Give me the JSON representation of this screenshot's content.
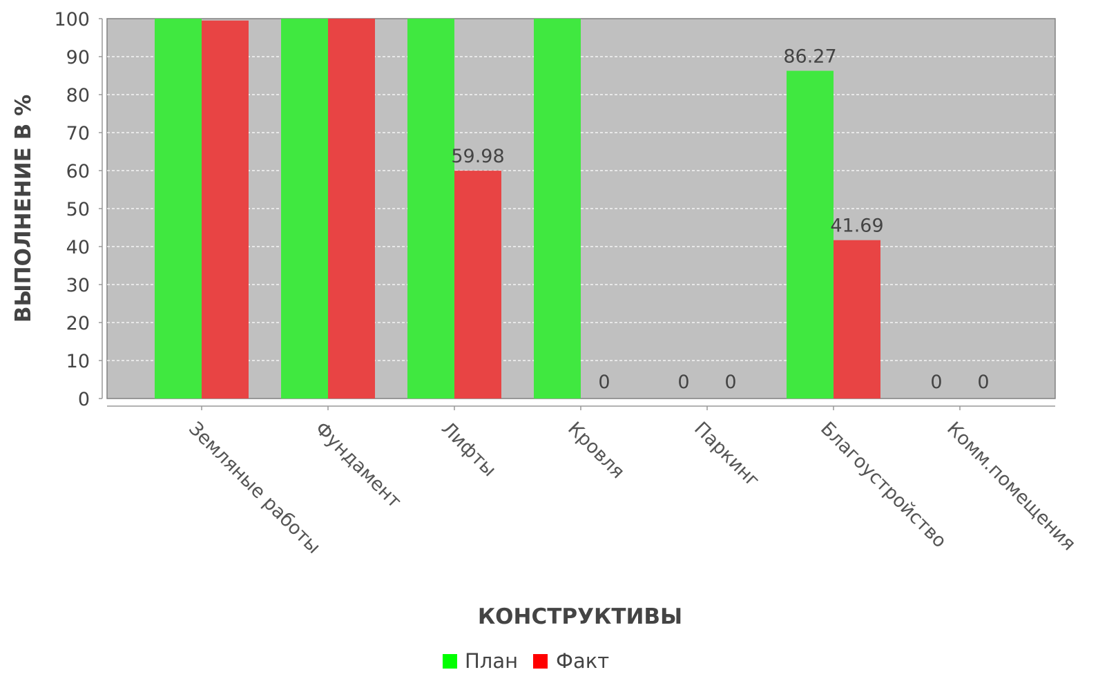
{
  "chart_data": {
    "type": "bar",
    "categories": [
      "Земляные работы",
      "Фундамент",
      "Лифты",
      "Кровля",
      "Паркинг",
      "Благоустройство",
      "Комм.помещения"
    ],
    "series": [
      {
        "name": "План",
        "values": [
          100,
          100,
          100,
          100,
          0,
          86.27,
          0
        ],
        "color": "#40E840"
      },
      {
        "name": "Факт",
        "values": [
          99.5,
          100,
          59.98,
          0,
          0,
          41.69,
          0
        ],
        "color": "#E84444"
      }
    ],
    "data_labels": [
      {
        "series": 1,
        "index": 2,
        "text": "59.98"
      },
      {
        "series": 1,
        "index": 3,
        "text": "0"
      },
      {
        "series": 0,
        "index": 4,
        "text": "0"
      },
      {
        "series": 1,
        "index": 4,
        "text": "0"
      },
      {
        "series": 0,
        "index": 5,
        "text": "86.27"
      },
      {
        "series": 1,
        "index": 5,
        "text": "41.69"
      },
      {
        "series": 0,
        "index": 6,
        "text": "0"
      },
      {
        "series": 1,
        "index": 6,
        "text": "0"
      }
    ],
    "xlabel": "КОНСТРУКТИВЫ",
    "ylabel": "ВЫПОЛНЕНИЕ В %",
    "ylim": [
      0,
      100
    ],
    "yticks": [
      0,
      10,
      20,
      30,
      40,
      50,
      60,
      70,
      80,
      90,
      100
    ],
    "grid": true,
    "legend_position": "bottom-center",
    "plot_background": "#C0C0C0"
  },
  "legend": {
    "items": [
      {
        "label": "План",
        "color": "#00FF00"
      },
      {
        "label": "Факт",
        "color": "#FF0000"
      }
    ]
  }
}
